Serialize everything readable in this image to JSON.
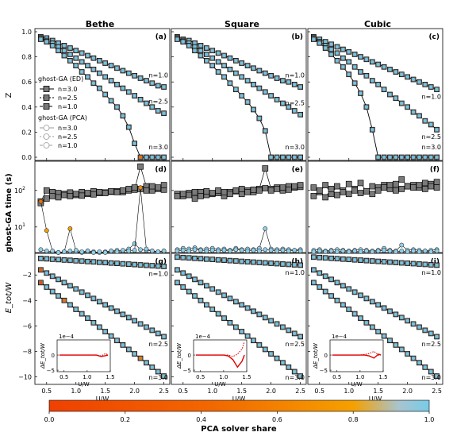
{
  "figure": {
    "columns": [
      "Bethe",
      "Square",
      "Cubic"
    ],
    "panel_letters": [
      [
        "(a)",
        "(b)",
        "(c)"
      ],
      [
        "(d)",
        "(e)",
        "(f)"
      ],
      [
        "(g)",
        "(h)",
        "(i)"
      ]
    ],
    "row_ylabels": [
      "Z",
      "ghost-GA time (s)",
      "E_tot/W"
    ],
    "xlabel": "U/W",
    "x_ticks": [
      "0.5",
      "1.0",
      "1.5",
      "2.0",
      "2.5"
    ],
    "z_ticks": [
      "0.0",
      "0.2",
      "0.4",
      "0.6",
      "0.8",
      "1.0"
    ],
    "t_ticks": [
      "10^1",
      "10^2"
    ],
    "e_ticks": [
      "−2",
      "−4",
      "−6",
      "−8",
      "−10"
    ],
    "n_labels": [
      "n=1.0",
      "n=2.5",
      "n=3.0"
    ],
    "legend": {
      "ed_title": "ghost-GA (ED)",
      "ed_entries": [
        "n=3.0",
        "n=2.5",
        "n=1.0"
      ],
      "pca_title": "ghost-GA (PCA)",
      "pca_entries": [
        "n=3.0",
        "n=2.5",
        "n=1.0"
      ]
    },
    "inset": {
      "exponent": "1e−4",
      "yticks": [
        "0",
        "−5"
      ],
      "ylabel": "ΔE_tot/W",
      "xlabel": "U/W",
      "xticks": [
        "0.5",
        "1.0",
        "1.5"
      ]
    },
    "colorbar": {
      "label": "PCA solver share",
      "ticks": [
        "0.0",
        "0.2",
        "0.4",
        "0.6",
        "0.8",
        "1.0"
      ],
      "colors": [
        "#f04000",
        "#f58200",
        "#f5a000",
        "#9ec4d6",
        "#7ecbe6"
      ]
    }
  },
  "chart_data": {
    "type": "line",
    "x": [
      0.4,
      0.5,
      0.6,
      0.7,
      0.8,
      0.9,
      1.0,
      1.1,
      1.2,
      1.3,
      1.4,
      1.5,
      1.6,
      1.7,
      1.8,
      1.9,
      2.0,
      2.1,
      2.2,
      2.3,
      2.4,
      2.5
    ],
    "panels": {
      "Z": {
        "Bethe": {
          "n=1.0": [
            0.96,
            0.95,
            0.93,
            0.91,
            0.89,
            0.87,
            0.85,
            0.83,
            0.81,
            0.79,
            0.77,
            0.75,
            0.73,
            0.71,
            0.69,
            0.67,
            0.65,
            0.63,
            0.61,
            0.59,
            0.57,
            0.56
          ],
          "n=2.5": [
            0.95,
            0.93,
            0.91,
            0.88,
            0.85,
            0.82,
            0.79,
            0.76,
            0.73,
            0.7,
            0.67,
            0.64,
            0.61,
            0.58,
            0.55,
            0.52,
            0.49,
            0.46,
            0.43,
            0.4,
            0.37,
            0.35
          ],
          "n=3.0": [
            0.94,
            0.92,
            0.89,
            0.85,
            0.81,
            0.77,
            0.73,
            0.68,
            0.64,
            0.59,
            0.55,
            0.5,
            0.45,
            0.4,
            0.33,
            0.24,
            0.11,
            0.0,
            0.0,
            0.0,
            0.0,
            0.0
          ]
        },
        "Square": {
          "n=1.0": [
            0.96,
            0.94,
            0.93,
            0.91,
            0.89,
            0.87,
            0.85,
            0.83,
            0.81,
            0.79,
            0.77,
            0.75,
            0.73,
            0.71,
            0.69,
            0.67,
            0.65,
            0.63,
            0.61,
            0.6,
            0.58,
            0.56
          ],
          "n=2.5": [
            0.95,
            0.93,
            0.91,
            0.88,
            0.85,
            0.82,
            0.79,
            0.76,
            0.73,
            0.7,
            0.67,
            0.64,
            0.61,
            0.58,
            0.55,
            0.52,
            0.49,
            0.46,
            0.43,
            0.4,
            0.37,
            0.34
          ],
          "n=3.0": [
            0.94,
            0.92,
            0.89,
            0.85,
            0.81,
            0.77,
            0.73,
            0.68,
            0.64,
            0.59,
            0.54,
            0.49,
            0.44,
            0.38,
            0.31,
            0.21,
            0.0,
            0.0,
            0.0,
            0.0,
            0.0,
            0.0
          ]
        },
        "Cubic": {
          "n=1.0": [
            0.96,
            0.94,
            0.92,
            0.9,
            0.88,
            0.86,
            0.84,
            0.82,
            0.8,
            0.78,
            0.76,
            0.74,
            0.72,
            0.7,
            0.68,
            0.66,
            0.64,
            0.62,
            0.6,
            0.58,
            0.56,
            0.54
          ],
          "n=2.5": [
            0.95,
            0.92,
            0.89,
            0.86,
            0.83,
            0.79,
            0.76,
            0.72,
            0.68,
            0.65,
            0.61,
            0.58,
            0.54,
            0.5,
            0.47,
            0.43,
            0.4,
            0.36,
            0.33,
            0.29,
            0.26,
            0.22
          ],
          "n=3.0": [
            0.94,
            0.91,
            0.87,
            0.82,
            0.77,
            0.72,
            0.66,
            0.59,
            0.51,
            0.4,
            0.22,
            0.0,
            0.0,
            0.0,
            0.0,
            0.0,
            0.0,
            0.0,
            0.0,
            0.0,
            0.0,
            0.0
          ]
        }
      },
      "time": {
        "Bethe": {
          "ED_a": [
            50,
            100,
            90,
            85,
            80,
            88,
            75,
            90,
            80,
            95,
            85,
            88,
            92,
            95,
            90,
            100,
            105,
            450,
            130,
            100,
            110,
            105
          ],
          "ED_b": [
            45,
            60,
            70,
            65,
            75,
            70,
            80,
            72,
            85,
            78,
            90,
            85,
            95,
            90,
            100,
            110,
            120,
            110,
            100,
            130,
            120,
            140
          ],
          "PCA_a": [
            2.4,
            2.2,
            2.1,
            2.0,
            2.1,
            2.2,
            2.1,
            2.0,
            2.2,
            2.1,
            2.0,
            2.1,
            2.2,
            2.3,
            2.2,
            2.5,
            3.5,
            2.4,
            2.3,
            2.2,
            2.1,
            2.2
          ],
          "PCA_b": [
            50,
            8,
            2.2,
            2.0,
            2.1,
            9,
            2.3,
            2.1,
            2.2,
            2.0,
            2.1,
            2.0,
            2.2,
            2.1,
            2.3,
            2.2,
            2.3,
            120,
            2.5,
            2.2,
            2.1,
            2.2
          ]
        },
        "Square": {
          "ED_a": [
            80,
            70,
            85,
            60,
            90,
            75,
            80,
            85,
            70,
            90,
            95,
            80,
            100,
            90,
            110,
            400,
            110,
            120,
            100,
            130,
            120,
            125
          ],
          "ED_b": [
            70,
            80,
            75,
            90,
            70,
            95,
            85,
            100,
            90,
            80,
            100,
            110,
            90,
            105,
            100,
            115,
            100,
            110,
            120,
            105,
            130,
            140
          ],
          "PCA_a": [
            2.4,
            2.6,
            2.5,
            2.7,
            2.4,
            2.5,
            2.6,
            2.4,
            2.5,
            2.3,
            2.6,
            2.4,
            2.5,
            2.4,
            2.6,
            9.0,
            2.5,
            2.4,
            2.5,
            2.4,
            2.3,
            2.4
          ],
          "PCA_b": [
            2.2,
            2.3,
            2.2,
            2.4,
            2.3,
            2.2,
            2.3,
            2.2,
            2.3,
            2.2,
            2.4,
            2.3,
            2.2,
            2.3,
            2.2,
            2.4,
            2.3,
            2.2,
            2.3,
            2.2,
            2.3,
            2.2
          ]
        },
        "Cubic": {
          "ED_a": [
            120,
            90,
            140,
            80,
            130,
            100,
            150,
            110,
            160,
            95,
            130,
            120,
            140,
            110,
            150,
            200,
            130,
            140,
            120,
            160,
            150,
            170
          ],
          "ED_b": [
            70,
            100,
            65,
            110,
            75,
            90,
            80,
            100,
            85,
            95,
            80,
            100,
            120,
            140,
            100,
            110,
            130,
            120,
            140,
            110,
            130,
            120
          ],
          "PCA_a": [
            2.3,
            2.4,
            2.2,
            2.3,
            2.4,
            2.3,
            2.2,
            2.3,
            2.4,
            2.3,
            2.2,
            2.3,
            2.6,
            2.3,
            2.2,
            3.2,
            2.3,
            2.4,
            2.3,
            2.2,
            2.3,
            2.4
          ],
          "PCA_b": [
            2.1,
            2.2,
            2.1,
            2.2,
            2.1,
            2.2,
            2.1,
            2.2,
            2.1,
            2.2,
            2.1,
            2.2,
            2.3,
            2.2,
            2.1,
            2.2,
            2.1,
            2.2,
            2.1,
            2.2,
            2.1,
            2.2
          ]
        }
      },
      "Etot": {
        "Bethe": {
          "n=1.0": [
            -0.7,
            -0.73,
            -0.76,
            -0.79,
            -0.82,
            -0.85,
            -0.88,
            -0.91,
            -0.94,
            -0.97,
            -1.0,
            -1.03,
            -1.06,
            -1.09,
            -1.12,
            -1.15,
            -1.18,
            -1.21,
            -1.24,
            -1.27,
            -1.3,
            -1.33
          ],
          "n=2.5": [
            -1.6,
            -1.85,
            -2.1,
            -2.35,
            -2.6,
            -2.85,
            -3.1,
            -3.35,
            -3.6,
            -3.85,
            -4.1,
            -4.35,
            -4.6,
            -4.85,
            -5.1,
            -5.35,
            -5.6,
            -5.85,
            -6.1,
            -6.35,
            -6.6,
            -6.85
          ],
          "n=3.0": [
            -2.6,
            -2.95,
            -3.3,
            -3.65,
            -4.0,
            -4.35,
            -4.7,
            -5.05,
            -5.4,
            -5.75,
            -6.1,
            -6.45,
            -6.8,
            -7.15,
            -7.5,
            -7.85,
            -8.2,
            -8.55,
            -8.9,
            -9.25,
            -9.6,
            -9.95
          ]
        },
        "Square": {
          "n=1.0": [
            -0.6,
            -0.63,
            -0.66,
            -0.69,
            -0.72,
            -0.75,
            -0.78,
            -0.81,
            -0.84,
            -0.87,
            -0.9,
            -0.93,
            -0.96,
            -0.99,
            -1.02,
            -1.05,
            -1.08,
            -1.11,
            -1.14,
            -1.17,
            -1.2,
            -1.23
          ],
          "n=2.5": [
            -1.6,
            -1.85,
            -2.1,
            -2.35,
            -2.6,
            -2.85,
            -3.1,
            -3.35,
            -3.6,
            -3.85,
            -4.1,
            -4.35,
            -4.6,
            -4.85,
            -5.1,
            -5.35,
            -5.6,
            -5.85,
            -6.1,
            -6.35,
            -6.6,
            -6.85
          ],
          "n=3.0": [
            -2.6,
            -2.95,
            -3.3,
            -3.65,
            -4.0,
            -4.35,
            -4.7,
            -5.05,
            -5.4,
            -5.75,
            -6.1,
            -6.45,
            -6.8,
            -7.15,
            -7.5,
            -7.85,
            -8.2,
            -8.55,
            -8.9,
            -9.25,
            -9.6,
            -9.95
          ]
        },
        "Cubic": {
          "n=1.0": [
            -0.6,
            -0.63,
            -0.66,
            -0.69,
            -0.72,
            -0.75,
            -0.78,
            -0.81,
            -0.84,
            -0.87,
            -0.9,
            -0.93,
            -0.96,
            -0.99,
            -1.02,
            -1.05,
            -1.08,
            -1.11,
            -1.14,
            -1.17,
            -1.2,
            -1.23
          ],
          "n=2.5": [
            -1.6,
            -1.85,
            -2.1,
            -2.35,
            -2.6,
            -2.85,
            -3.1,
            -3.35,
            -3.6,
            -3.85,
            -4.1,
            -4.35,
            -4.6,
            -4.85,
            -5.1,
            -5.35,
            -5.6,
            -5.85,
            -6.1,
            -6.35,
            -6.6,
            -6.85
          ],
          "n=3.0": [
            -2.6,
            -2.95,
            -3.3,
            -3.65,
            -4.0,
            -4.35,
            -4.7,
            -5.05,
            -5.4,
            -5.75,
            -6.1,
            -6.45,
            -6.8,
            -7.15,
            -7.5,
            -7.85,
            -8.2,
            -8.55,
            -8.9,
            -9.25,
            -9.6,
            -9.95
          ]
        }
      },
      "inset_dE": {
        "x": [
          0.4,
          0.5,
          0.6,
          0.7,
          0.8,
          0.9,
          1.0,
          1.1,
          1.2,
          1.3,
          1.4,
          1.45
        ],
        "Bethe": {
          "a": [
            0,
            0,
            0,
            0,
            0,
            0,
            0,
            0,
            0,
            -0.5,
            -0.2,
            0
          ],
          "b": [
            0,
            0,
            0,
            0,
            0,
            0,
            0,
            0,
            0,
            -0.3,
            0.5,
            0
          ]
        },
        "Square": {
          "a": [
            0,
            0,
            0,
            0,
            0,
            0,
            0,
            -0.3,
            -1.5,
            -4.0,
            -2.0,
            0
          ],
          "b": [
            0,
            0,
            0,
            0,
            0,
            0,
            0,
            0,
            -0.5,
            0.3,
            2.0,
            4.5
          ]
        },
        "Cubic": {
          "a": [
            0,
            0,
            0,
            0,
            0,
            0,
            0,
            0,
            -0.3,
            -1.0,
            0.3,
            0
          ],
          "b": [
            0,
            0,
            0,
            0,
            0,
            0,
            0,
            0.2,
            0.5,
            1.2,
            0,
            0
          ]
        }
      }
    },
    "ranges": {
      "x": [
        0.3,
        2.6
      ],
      "Z": [
        0.0,
        1.0
      ],
      "time_log": [
        0.3,
        2.8
      ],
      "Etot": [
        -10.6,
        -0.3
      ],
      "inset_y": [
        -5.5,
        5
      ]
    }
  }
}
